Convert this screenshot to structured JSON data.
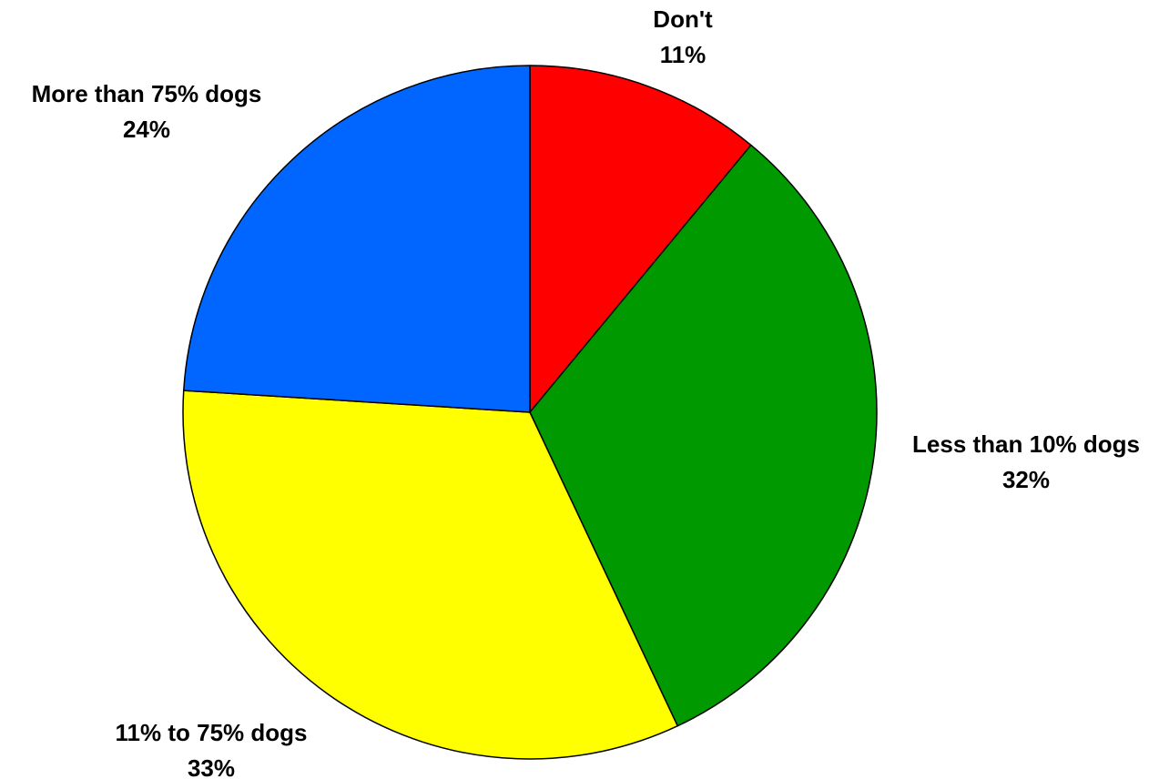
{
  "chart_data": {
    "type": "pie",
    "title": "",
    "slices": [
      {
        "label": "Don't",
        "value": 11,
        "display": "11%",
        "color": "#ff0000"
      },
      {
        "label": "Less than 10% dogs",
        "value": 32,
        "display": "32%",
        "color": "#009900"
      },
      {
        "label": "11% to 75% dogs",
        "value": 33,
        "display": "33%",
        "color": "#ffff00"
      },
      {
        "label": "More than 75% dogs",
        "value": 24,
        "display": "24%",
        "color": "#0066ff"
      }
    ],
    "start_angle": "12 o'clock",
    "direction": "clockwise",
    "legend": "none",
    "labels": "outside"
  }
}
